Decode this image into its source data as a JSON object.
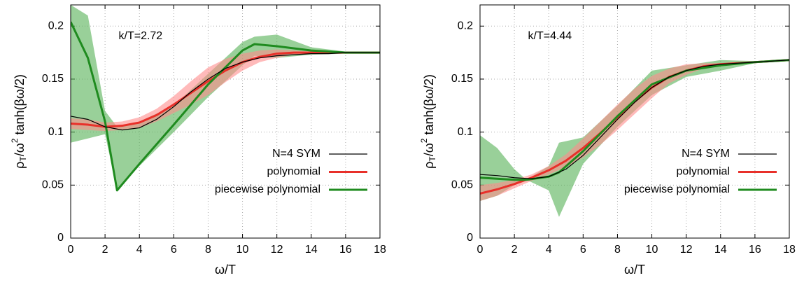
{
  "chart_data": [
    {
      "type": "line",
      "annotation": "k/T=2.72",
      "xlabel": "ω/T",
      "ylabel": [
        "ρ",
        "T",
        "/ω",
        "2",
        " tanh(βω/2)"
      ],
      "xlim": [
        0,
        18
      ],
      "ylim": [
        0,
        0.22
      ],
      "xticks": [
        0,
        2,
        4,
        6,
        8,
        10,
        12,
        14,
        16,
        18
      ],
      "yticks": [
        0,
        0.05,
        0.1,
        0.15,
        0.2
      ],
      "grid": true,
      "legend": "lower right",
      "series": [
        {
          "name": "N=4 SYM",
          "color": "#000000",
          "x": [
            0,
            1,
            2,
            3,
            4,
            5,
            6,
            7,
            8,
            9,
            10,
            11,
            12,
            13,
            14,
            15,
            16,
            17,
            18
          ],
          "values": [
            0.115,
            0.112,
            0.105,
            0.102,
            0.104,
            0.112,
            0.124,
            0.138,
            0.15,
            0.16,
            0.166,
            0.17,
            0.172,
            0.173,
            0.174,
            0.174,
            0.175,
            0.175,
            0.175
          ]
        },
        {
          "name": "polynomial",
          "color": "#e8302a",
          "band_color": "#ff8c8c",
          "x": [
            0,
            1,
            2,
            3,
            4,
            5,
            6,
            7,
            8,
            9,
            10,
            11,
            12,
            13,
            14,
            15,
            16,
            17,
            18
          ],
          "values": [
            0.108,
            0.107,
            0.105,
            0.106,
            0.109,
            0.116,
            0.126,
            0.137,
            0.148,
            0.158,
            0.166,
            0.171,
            0.174,
            0.175,
            0.175,
            0.175,
            0.175,
            0.175,
            0.175
          ],
          "lower": [
            0.103,
            0.102,
            0.101,
            0.102,
            0.104,
            0.11,
            0.118,
            0.126,
            0.135,
            0.147,
            0.158,
            0.166,
            0.17,
            0.173,
            0.174,
            0.174,
            0.175,
            0.175,
            0.175
          ],
          "upper": [
            0.113,
            0.112,
            0.109,
            0.11,
            0.114,
            0.122,
            0.134,
            0.148,
            0.161,
            0.169,
            0.174,
            0.177,
            0.178,
            0.177,
            0.176,
            0.176,
            0.175,
            0.175,
            0.175
          ]
        },
        {
          "name": "piecewise polynomial",
          "color": "#1f8b1f",
          "band_color": "#55b055",
          "x": [
            0,
            1,
            2,
            2.7,
            4,
            6,
            8,
            10,
            10.7,
            12,
            14,
            16,
            18
          ],
          "values": [
            0.204,
            0.17,
            0.11,
            0.045,
            0.07,
            0.107,
            0.145,
            0.177,
            0.183,
            0.181,
            0.177,
            0.175,
            0.175
          ],
          "lower": [
            0.09,
            0.094,
            0.098,
            0.045,
            0.068,
            0.1,
            0.133,
            0.163,
            0.172,
            0.17,
            0.173,
            0.174,
            0.175
          ],
          "upper": [
            0.22,
            0.21,
            0.12,
            0.105,
            0.11,
            0.125,
            0.155,
            0.185,
            0.19,
            0.192,
            0.18,
            0.176,
            0.175
          ]
        }
      ]
    },
    {
      "type": "line",
      "annotation": "k/T=4.44",
      "xlabel": "ω/T",
      "ylabel": [
        "ρ",
        "T",
        "/ω",
        "2",
        " tanh(βω/2)"
      ],
      "xlim": [
        0,
        18
      ],
      "ylim": [
        0,
        0.22
      ],
      "xticks": [
        0,
        2,
        4,
        6,
        8,
        10,
        12,
        14,
        16,
        18
      ],
      "yticks": [
        0,
        0.05,
        0.1,
        0.15,
        0.2
      ],
      "grid": true,
      "legend": "lower right",
      "series": [
        {
          "name": "N=4 SYM",
          "color": "#000000",
          "x": [
            0,
            1,
            2,
            3,
            4,
            5,
            6,
            7,
            8,
            9,
            10,
            11,
            12,
            13,
            14,
            15,
            16,
            17,
            18
          ],
          "values": [
            0.06,
            0.059,
            0.057,
            0.056,
            0.058,
            0.065,
            0.078,
            0.095,
            0.112,
            0.128,
            0.142,
            0.152,
            0.158,
            0.162,
            0.164,
            0.165,
            0.166,
            0.167,
            0.168
          ]
        },
        {
          "name": "polynomial",
          "color": "#e8302a",
          "band_color": "#ff8c8c",
          "x": [
            0,
            1,
            2,
            3,
            4,
            5,
            6,
            7,
            8,
            9,
            10,
            11,
            12,
            13,
            14,
            15,
            16,
            17,
            18
          ],
          "values": [
            0.042,
            0.046,
            0.051,
            0.057,
            0.064,
            0.073,
            0.085,
            0.099,
            0.114,
            0.129,
            0.142,
            0.152,
            0.158,
            0.162,
            0.164,
            0.165,
            0.166,
            0.167,
            0.168
          ],
          "lower": [
            0.035,
            0.04,
            0.047,
            0.054,
            0.06,
            0.067,
            0.076,
            0.088,
            0.102,
            0.117,
            0.132,
            0.146,
            0.154,
            0.16,
            0.163,
            0.165,
            0.166,
            0.167,
            0.168
          ],
          "upper": [
            0.05,
            0.052,
            0.055,
            0.06,
            0.068,
            0.079,
            0.094,
            0.11,
            0.126,
            0.141,
            0.153,
            0.16,
            0.164,
            0.165,
            0.165,
            0.165,
            0.166,
            0.167,
            0.168
          ]
        },
        {
          "name": "piecewise polynomial",
          "color": "#1f8b1f",
          "band_color": "#55b055",
          "x": [
            0,
            1,
            2,
            2.7,
            4,
            4.6,
            6,
            8,
            10,
            12,
            14,
            16,
            18
          ],
          "values": [
            0.057,
            0.056,
            0.055,
            0.055,
            0.058,
            0.062,
            0.082,
            0.115,
            0.145,
            0.158,
            0.163,
            0.166,
            0.168
          ],
          "lower": [
            0.035,
            0.04,
            0.05,
            0.055,
            0.045,
            0.02,
            0.07,
            0.105,
            0.135,
            0.152,
            0.158,
            0.165,
            0.168
          ],
          "upper": [
            0.097,
            0.085,
            0.065,
            0.055,
            0.068,
            0.09,
            0.095,
            0.125,
            0.158,
            0.163,
            0.168,
            0.167,
            0.168
          ]
        }
      ]
    }
  ]
}
